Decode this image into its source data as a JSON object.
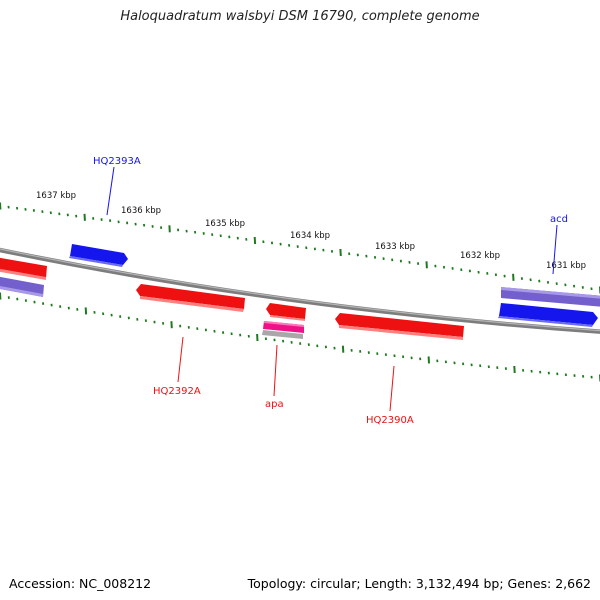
{
  "title": "Haloquadratum walsbyi DSM 16790, complete genome",
  "accession": "Accession: NC_008212",
  "summary": "Topology: circular; Length: 3,132,494 bp; Genes: 2,662",
  "colors": {
    "backbone": "#8a8a8a",
    "ticks": "#1e7a1e",
    "forward_gene": "#1a1aee",
    "reverse_gene": "#ee1111",
    "rna_band": "#7766cc",
    "pink_band": "#ee1188",
    "grey_band": "#aaaaaa"
  },
  "scale_labels": [
    {
      "text": "1637 kbp",
      "kbp": 1637
    },
    {
      "text": "1636 kbp",
      "kbp": 1636
    },
    {
      "text": "1635 kbp",
      "kbp": 1635
    },
    {
      "text": "1634 kbp",
      "kbp": 1634
    },
    {
      "text": "1633 kbp",
      "kbp": 1633
    },
    {
      "text": "1632 kbp",
      "kbp": 1632
    },
    {
      "text": "1631 kbp",
      "kbp": 1631
    }
  ],
  "genes": [
    {
      "label": "HQ2393A",
      "strand": "forward"
    },
    {
      "label": "acd",
      "strand": "forward"
    },
    {
      "label": "HQ2392A",
      "strand": "reverse"
    },
    {
      "label": "apa",
      "strand": "reverse"
    },
    {
      "label": "HQ2390A",
      "strand": "reverse"
    }
  ]
}
